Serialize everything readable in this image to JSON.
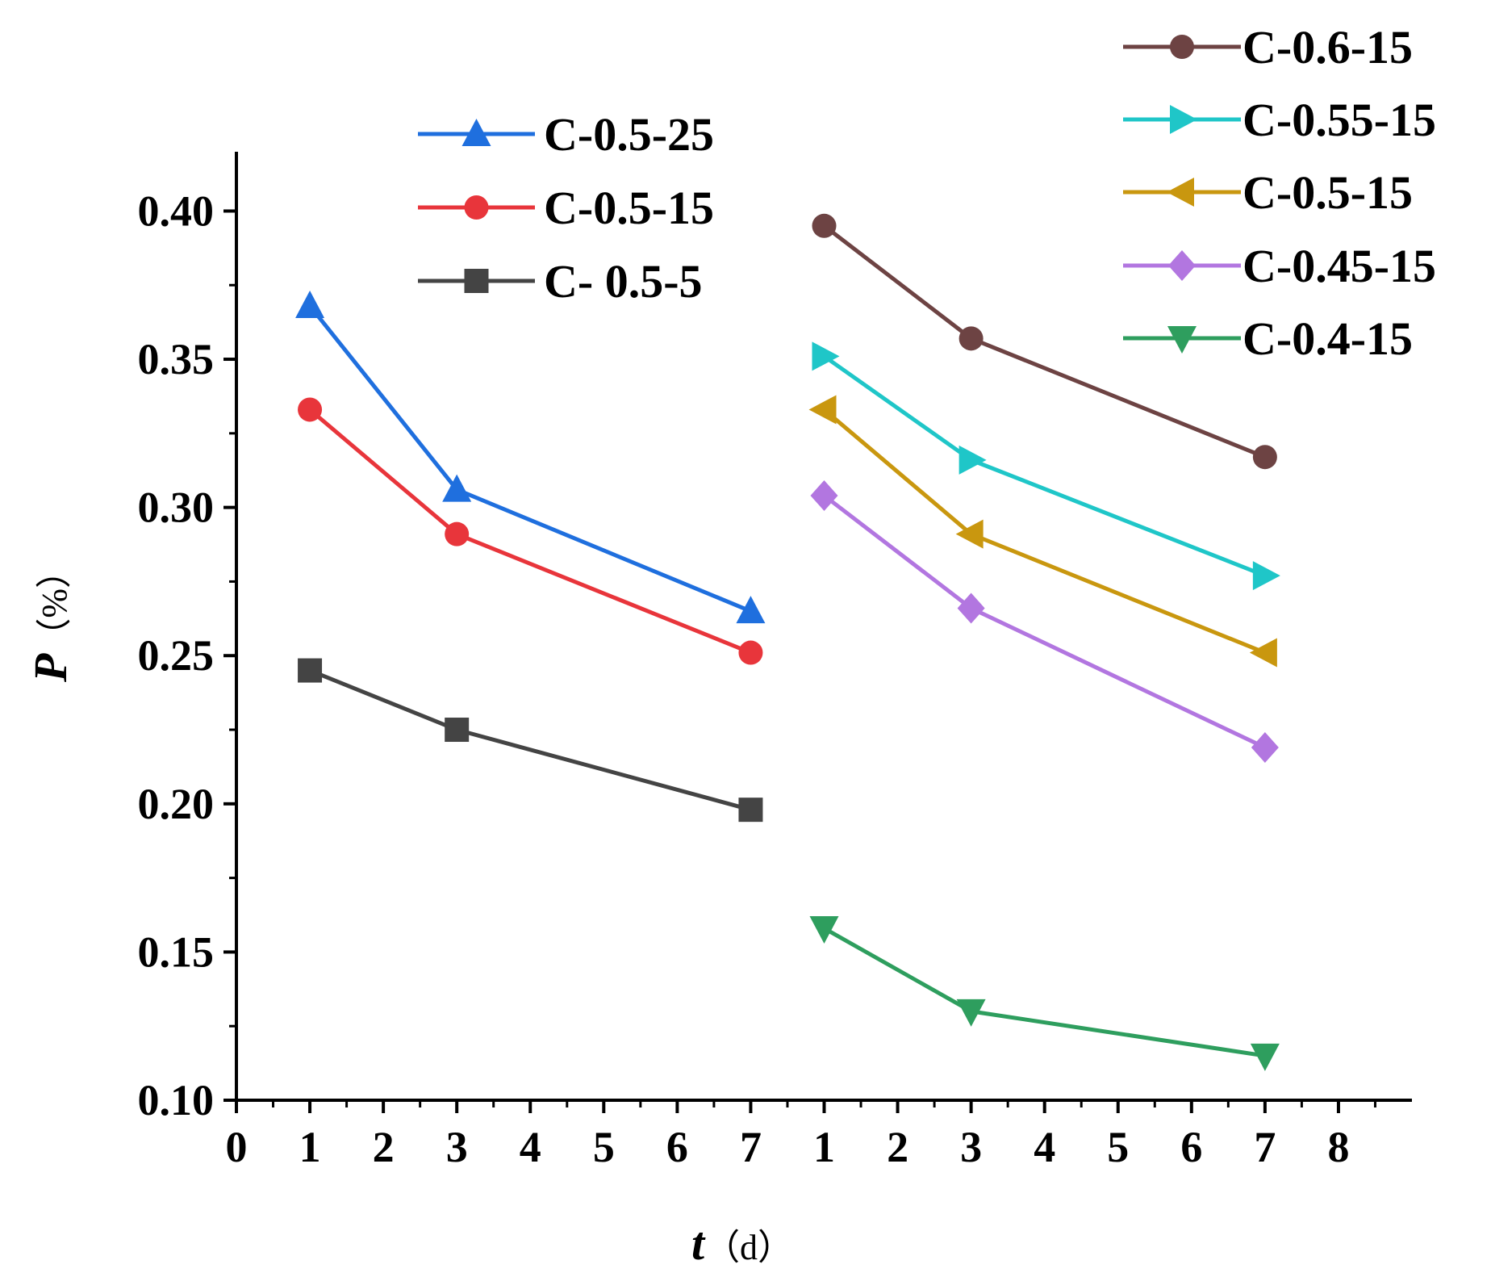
{
  "chart_data": {
    "type": "line",
    "xlabel_var": "t",
    "xlabel_unit": "（d）",
    "ylabel_var": "P",
    "ylabel_unit": "（%）",
    "xlim": [
      0,
      8
    ],
    "ylim": [
      0.1,
      0.42
    ],
    "x_ticks": [
      {
        "pos": 0,
        "label": "0"
      },
      {
        "pos": 0.5,
        "label": "1"
      },
      {
        "pos": 1,
        "label": "2"
      },
      {
        "pos": 1.5,
        "label": "3"
      },
      {
        "pos": 2,
        "label": "4"
      },
      {
        "pos": 2.5,
        "label": "5"
      },
      {
        "pos": 3,
        "label": "6"
      },
      {
        "pos": 3.5,
        "label": "7"
      },
      {
        "pos": 4,
        "label": "1"
      },
      {
        "pos": 4.5,
        "label": "2"
      },
      {
        "pos": 5,
        "label": "3"
      },
      {
        "pos": 5.5,
        "label": "4"
      },
      {
        "pos": 6,
        "label": "5"
      },
      {
        "pos": 6.5,
        "label": "6"
      },
      {
        "pos": 7,
        "label": "7"
      },
      {
        "pos": 7.5,
        "label": "8"
      }
    ],
    "y_ticks": [
      "0.10",
      "0.15",
      "0.20",
      "0.25",
      "0.30",
      "0.35",
      "0.40"
    ],
    "grid": false,
    "legend_groups": [
      {
        "placement": "top-left",
        "series": [
          "C-0.5-25",
          "C-0.5-15",
          "C- 0.5-5"
        ]
      },
      {
        "placement": "top-right",
        "series": [
          "C-0.6-15",
          "C-0.55-15",
          "C-0.5-15 ",
          "C-0.45-15",
          "C-0.4-15"
        ]
      }
    ],
    "series": [
      {
        "name": "C-0.5-25",
        "color": "#1f6fde",
        "marker": "triangle-up",
        "group": "left",
        "x": [
          1,
          3,
          7
        ],
        "values": [
          0.368,
          0.306,
          0.265
        ]
      },
      {
        "name": "C-0.5-15",
        "color": "#e8353b",
        "marker": "circle",
        "group": "left",
        "x": [
          1,
          3,
          7
        ],
        "values": [
          0.333,
          0.291,
          0.251
        ]
      },
      {
        "name": "C- 0.5-5",
        "color": "#444444",
        "marker": "square",
        "group": "left",
        "x": [
          1,
          3,
          7
        ],
        "values": [
          0.245,
          0.225,
          0.198
        ]
      },
      {
        "name": "C-0.6-15",
        "color": "#6d4343",
        "marker": "circle",
        "group": "right",
        "x": [
          1,
          3,
          7
        ],
        "values": [
          0.395,
          0.357,
          0.317
        ]
      },
      {
        "name": "C-0.55-15",
        "color": "#1fc6c8",
        "marker": "triangle-right",
        "group": "right",
        "x": [
          1,
          3,
          7
        ],
        "values": [
          0.351,
          0.316,
          0.277
        ]
      },
      {
        "name": "C-0.5-15 ",
        "color": "#c9970f",
        "marker": "triangle-left",
        "group": "right",
        "x": [
          1,
          3,
          7
        ],
        "values": [
          0.333,
          0.291,
          0.251
        ]
      },
      {
        "name": "C-0.45-15",
        "color": "#b276e0",
        "marker": "diamond",
        "group": "right",
        "x": [
          1,
          3,
          7
        ],
        "values": [
          0.304,
          0.266,
          0.219
        ]
      },
      {
        "name": "C-0.4-15",
        "color": "#2e9e5e",
        "marker": "triangle-down",
        "group": "right",
        "x": [
          1,
          3,
          7
        ],
        "values": [
          0.158,
          0.13,
          0.115
        ]
      }
    ]
  }
}
